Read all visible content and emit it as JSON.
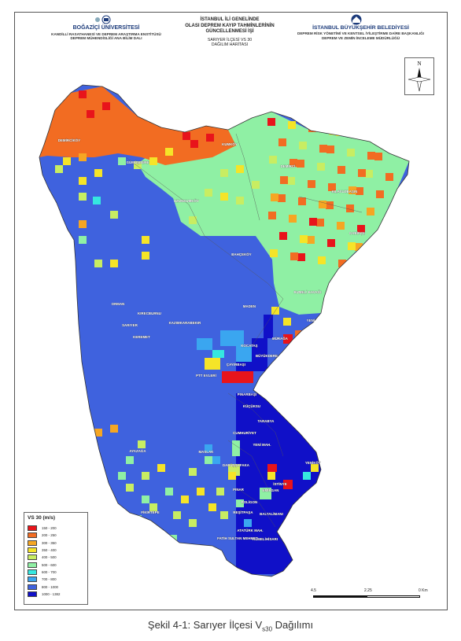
{
  "header": {
    "left_line1": "BOĞAZİÇİ ÜNİVERSİTESİ",
    "left_line2": "KANDİLLİ RASATHANESİ VE DEPREM ARAŞTIRMA ENSTİTÜSÜ",
    "left_line3": "DEPREM MÜHENDİSLİĞİ ANA BİLİM DALI",
    "title_line1": "İSTANBUL İLİ GENELİNDE",
    "title_line2": "OLASI DEPREM KAYIP TAHMİNLERİNİN",
    "title_line3": "GÜNCELLENMESİ İŞİ",
    "subtitle_line1": "SARIYER İLÇESİ VS 30",
    "subtitle_line2": "DAĞILIM HARİTASI",
    "right_line1": "İSTANBUL BÜYÜKŞEHİR BELEDİYESİ",
    "right_line2": "DEPREM RİSK YÖNETİMİ VE KENTSEL İYİLEŞTİRME DAİRE BAŞKANLIĞI",
    "right_line3": "DEPREM VE ZEMİN İNCELEME MÜDÜRLÜĞÜ"
  },
  "north_label": "N",
  "legend": {
    "title": "VS 30 (m/s)",
    "items": [
      {
        "label": "150 - 200",
        "color": "#e8141b"
      },
      {
        "label": "200 - 250",
        "color": "#f26c22"
      },
      {
        "label": "300 - 350",
        "color": "#f5a623"
      },
      {
        "label": "350 - 400",
        "color": "#f5e428"
      },
      {
        "label": "400 - 500",
        "color": "#c8ed62"
      },
      {
        "label": "500 - 600",
        "color": "#8ff0a4"
      },
      {
        "label": "600 - 700",
        "color": "#35e7e0"
      },
      {
        "label": "700 - 800",
        "color": "#3aa6f0"
      },
      {
        "label": "800 - 1000",
        "color": "#3f62de"
      },
      {
        "label": "1000 - 1382",
        "color": "#1010c8"
      }
    ]
  },
  "scale": {
    "l0": "4.5",
    "l1": "2.25",
    "l2": "0 Km"
  },
  "places": [
    "DEMİRCİKÖY",
    "GÜMÜŞDERE",
    "KUMKÖY",
    "DEMİRCİ",
    "KILAVUZBAŞIN",
    "GARİPÇE",
    "UZUNKUMKÖY",
    "BAHÇEKÖY",
    "RUMELİ KAVAĞI",
    "MADEN",
    "YENİ",
    "MÜRAĞA",
    "SARIYER",
    "ORMAN",
    "KIRECBURNU",
    "KOCATAŞ",
    "BÜYÜKDERE",
    "TARABYA",
    "KAZIMKARABEKIR",
    "KÜÇÜKSU",
    "YENİKÖY",
    "İSTİNYE",
    "EMİRGAN",
    "AYAZAĞA",
    "MASLAK",
    "PINAR",
    "POLİGON",
    "REŞİTPAŞA",
    "BALTALİMANI",
    "ATATÜRK MAH.",
    "RUMELİHİSARI",
    "FATİH SULTAN MEHMET",
    "ÇAYIRBAŞI",
    "PTT EVLERİ",
    "KEREMET",
    "CUMHURİYET",
    "DARÜŞŞAFAKA",
    "YENİ MAH.",
    "FİKİRTEPE",
    "PINARBAŞI"
  ],
  "caption_pre": "Şekil 4-1: Sarıyer İlçesi V",
  "caption_sub": "s30",
  "caption_post": " Dağılımı",
  "colors": {
    "sea": "#ffffff",
    "land_base": "#3f62de"
  }
}
